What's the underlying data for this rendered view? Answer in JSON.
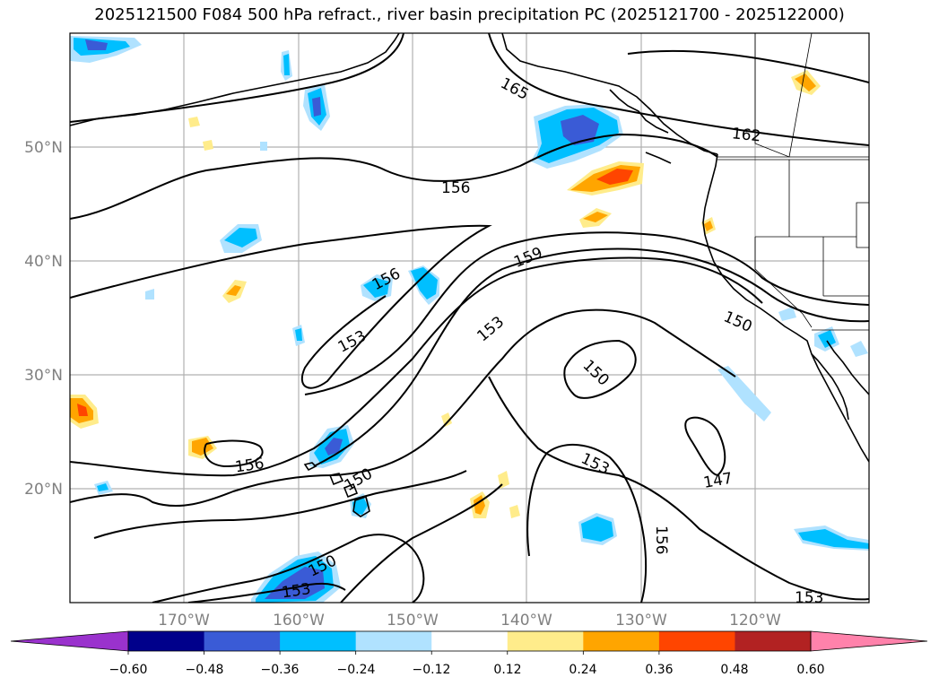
{
  "title": "2025121500 F084 500 hPa refract., river basin precipitation PC (2025121700 - 2025122000)",
  "map": {
    "projection": "PlateCarree",
    "lon_range": [
      -180,
      -110
    ],
    "lat_range": [
      10,
      60
    ],
    "lon_ticks": [
      "170°W",
      "160°W",
      "150°W",
      "140°W",
      "130°W",
      "120°W"
    ],
    "lat_ticks": [
      "20°N",
      "30°N",
      "40°N",
      "50°N"
    ],
    "grid": true,
    "contour_labels": [
      "165",
      "162",
      "156",
      "159",
      "156",
      "153",
      "153",
      "150",
      "150",
      "150",
      "153",
      "156",
      "147",
      "156",
      "150",
      "153",
      "153"
    ]
  },
  "colorbar": {
    "tick_labels": [
      "−0.60",
      "−0.48",
      "−0.36",
      "−0.24",
      "−0.12",
      "0.12",
      "0.24",
      "0.36",
      "0.48",
      "0.60"
    ],
    "colors": [
      "#9a32cd",
      "#00008b",
      "#3a5bd6",
      "#00bfff",
      "#b0e2ff",
      "#ffffff",
      "#ffec8b",
      "#ffa500",
      "#ff4500",
      "#b22222",
      "#ff82ab"
    ],
    "extend": "both"
  }
}
